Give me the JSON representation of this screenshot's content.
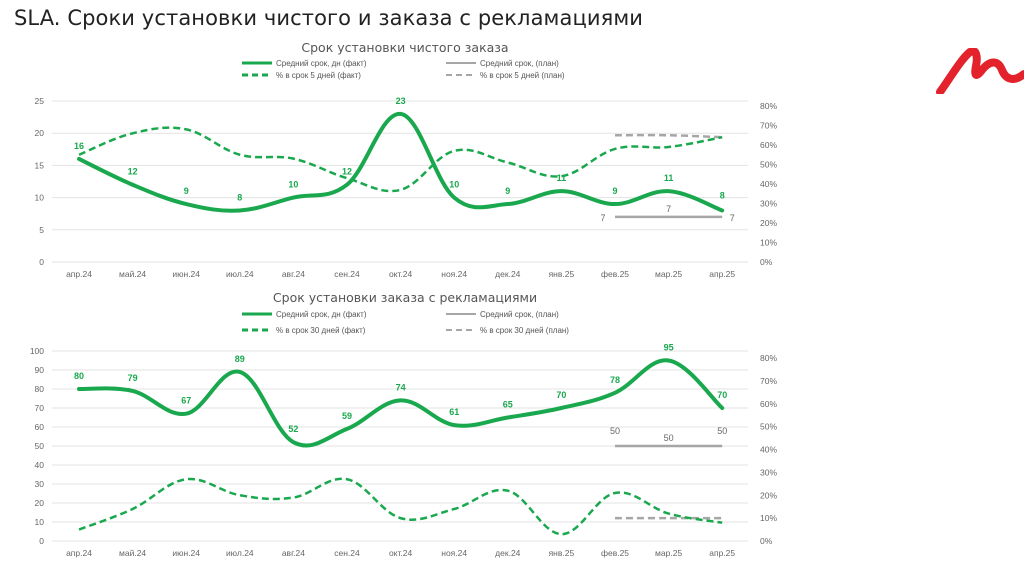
{
  "page": {
    "title": "SLA. Сроки установки чистого и заказа с рекламациями",
    "logo": "brand-logo-red-m"
  },
  "colors": {
    "fact": "#1aa84e",
    "plan": "#a6a6a6",
    "logo": "#e3222b"
  },
  "chart_data": [
    {
      "type": "line",
      "title": "Срок установки чистого заказа",
      "categories": [
        "апр.24",
        "май.24",
        "июн.24",
        "июл.24",
        "авг.24",
        "сен.24",
        "окт.24",
        "ноя.24",
        "дек.24",
        "янв.25",
        "фев.25",
        "мар.25",
        "апр.25"
      ],
      "y_left": {
        "ticks": [
          "0",
          "5",
          "10",
          "15",
          "20",
          "25"
        ],
        "range": [
          0,
          25
        ]
      },
      "y_right": {
        "ticks": [
          "0%",
          "10%",
          "20%",
          "30%",
          "40%",
          "50%",
          "60%",
          "70%",
          "80%"
        ],
        "range": [
          0,
          80
        ]
      },
      "grid": true,
      "legend_position": "top",
      "legend": [
        {
          "label": "Средний срок, дн (факт)",
          "style": "solid-green"
        },
        {
          "label": "Средний срок, (план)",
          "style": "solid-grey"
        },
        {
          "label": "% в срок 5 дней (факт)",
          "style": "dashed-green"
        },
        {
          "label": "% в срок 5 дней (план)",
          "style": "dashed-grey"
        }
      ],
      "series": [
        {
          "name": "Средний срок, дн (факт)",
          "axis": "left",
          "values": [
            16,
            12,
            9,
            8,
            10,
            12,
            23,
            10,
            9,
            11,
            9,
            11,
            8
          ],
          "labels": [
            "16",
            "12",
            "9",
            "8",
            "10",
            "12",
            "23",
            "10",
            "9",
            "11",
            "9",
            "11",
            "8"
          ]
        },
        {
          "name": "Средний срок, (план)",
          "axis": "left",
          "values": [
            null,
            null,
            null,
            null,
            null,
            null,
            null,
            null,
            null,
            null,
            7,
            7,
            7
          ],
          "labels": [
            "",
            "",
            "",
            "",
            "",
            "",
            "",
            "",
            "",
            "",
            "7",
            "7",
            "7"
          ]
        },
        {
          "name": "% в срок 5 дней (факт)",
          "axis": "right",
          "values": [
            55,
            66,
            68,
            55,
            53,
            43,
            37,
            57,
            51,
            44,
            58,
            59,
            64
          ]
        },
        {
          "name": "% в срок 5 дней (план)",
          "axis": "right",
          "values": [
            null,
            null,
            null,
            null,
            null,
            null,
            null,
            null,
            null,
            null,
            65,
            65,
            64
          ]
        }
      ]
    },
    {
      "type": "line",
      "title": "Срок установки заказа с рекламациями",
      "categories": [
        "апр.24",
        "май.24",
        "июн.24",
        "июл.24",
        "авг.24",
        "сен.24",
        "окт.24",
        "ноя.24",
        "дек.24",
        "янв.25",
        "фев.25",
        "мар.25",
        "апр.25"
      ],
      "y_left": {
        "ticks": [
          "0",
          "10",
          "20",
          "30",
          "40",
          "50",
          "60",
          "70",
          "80",
          "90",
          "100"
        ],
        "range": [
          0,
          100
        ]
      },
      "y_right": {
        "ticks": [
          "0%",
          "10%",
          "20%",
          "30%",
          "40%",
          "50%",
          "60%",
          "70%",
          "80%"
        ],
        "range": [
          0,
          80
        ]
      },
      "grid": true,
      "legend_position": "top",
      "legend": [
        {
          "label": "Средний срок, дн (факт)",
          "style": "solid-green"
        },
        {
          "label": "Средний срок, (план)",
          "style": "solid-grey"
        },
        {
          "label": "% в срок 30 дней (факт)",
          "style": "dashed-green"
        },
        {
          "label": "% в срок 30 дней (план)",
          "style": "dashed-grey"
        }
      ],
      "series": [
        {
          "name": "Средний срок, дн (факт)",
          "axis": "left",
          "values": [
            80,
            79,
            67,
            89,
            52,
            59,
            74,
            61,
            65,
            70,
            78,
            95,
            70
          ],
          "labels": [
            "80",
            "79",
            "67",
            "89",
            "52",
            "59",
            "74",
            "61",
            "65",
            "70",
            "78",
            "95",
            "70"
          ]
        },
        {
          "name": "Средний срок, (план)",
          "axis": "left",
          "values": [
            null,
            null,
            null,
            null,
            null,
            null,
            null,
            null,
            null,
            null,
            50,
            50,
            50
          ],
          "labels": [
            "",
            "",
            "",
            "",
            "",
            "",
            "",
            "",
            "",
            "",
            "50",
            "50",
            "50"
          ]
        },
        {
          "name": "% в срок 30 дней (факт)",
          "axis": "right",
          "values": [
            5,
            14,
            27,
            20,
            19,
            27,
            10,
            14,
            22,
            3,
            21,
            12,
            8
          ]
        },
        {
          "name": "% в срок 30 дней (план)",
          "axis": "right",
          "values": [
            null,
            null,
            null,
            null,
            null,
            null,
            null,
            null,
            null,
            null,
            10,
            10,
            10
          ]
        }
      ]
    }
  ]
}
